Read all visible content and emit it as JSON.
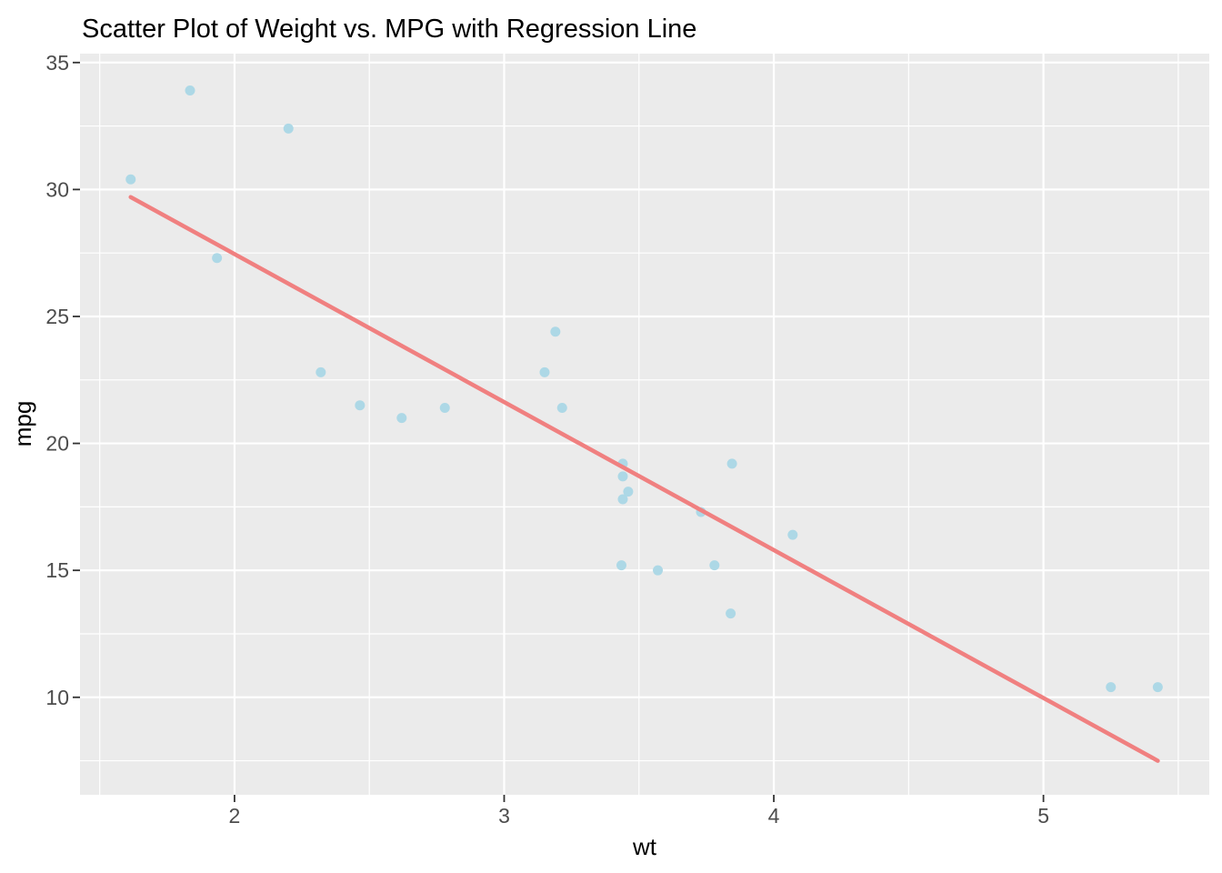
{
  "title": "Scatter Plot of Weight vs. MPG with Regression Line",
  "chart_data": {
    "type": "scatter",
    "title": "Scatter Plot of Weight vs. MPG with Regression Line",
    "xlabel": "wt",
    "ylabel": "mpg",
    "xlim": [
      1.427,
      5.615
    ],
    "ylim": [
      6.16,
      35.35
    ],
    "x_ticks": [
      2,
      3,
      4,
      5
    ],
    "y_ticks": [
      10,
      15,
      20,
      25,
      30,
      35
    ],
    "x_minor_ticks": [
      1.5,
      2.5,
      3.5,
      4.5,
      5.5
    ],
    "y_minor_ticks": [
      7.5,
      12.5,
      17.5,
      22.5,
      27.5,
      32.5
    ],
    "grid": true,
    "legend": false,
    "points": [
      [
        1.615,
        30.4
      ],
      [
        1.835,
        33.9
      ],
      [
        1.935,
        27.3
      ],
      [
        2.2,
        32.4
      ],
      [
        2.32,
        22.8
      ],
      [
        2.465,
        21.5
      ],
      [
        2.62,
        21.0
      ],
      [
        2.78,
        21.4
      ],
      [
        3.15,
        22.8
      ],
      [
        3.19,
        24.4
      ],
      [
        3.215,
        21.4
      ],
      [
        3.435,
        15.2
      ],
      [
        3.44,
        18.7
      ],
      [
        3.44,
        19.2
      ],
      [
        3.44,
        17.8
      ],
      [
        3.46,
        18.1
      ],
      [
        3.57,
        15.0
      ],
      [
        3.73,
        17.3
      ],
      [
        3.78,
        15.2
      ],
      [
        3.84,
        13.3
      ],
      [
        3.845,
        19.2
      ],
      [
        4.07,
        16.4
      ],
      [
        5.25,
        10.4
      ],
      [
        5.424,
        10.4
      ]
    ],
    "regression_line": {
      "x": [
        1.615,
        5.424
      ],
      "y": [
        29.7,
        7.5
      ]
    },
    "colors": {
      "point": "#ADD8E6",
      "line": "#F08080",
      "panel_background": "#EBEBEB",
      "gridline": "#FFFFFF",
      "tick_label": "#4D4D4D",
      "tick_mark": "#333333",
      "text": "#000000"
    }
  }
}
